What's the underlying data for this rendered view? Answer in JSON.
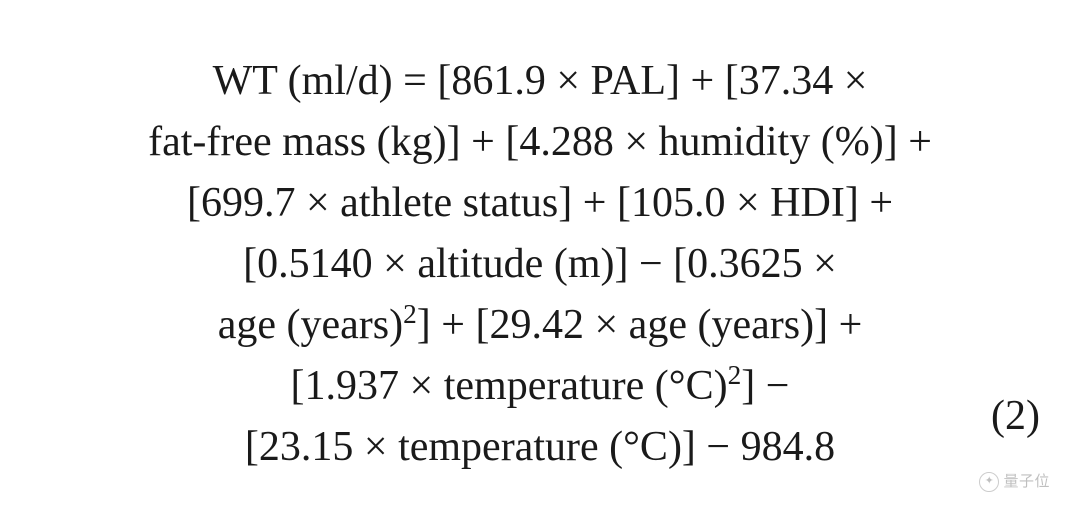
{
  "equation": {
    "label": "WT",
    "unit": "ml/d",
    "equation_number": "(2)",
    "font_family": "Century Schoolbook, Georgia, serif",
    "font_size_pt": 32,
    "text_color": "#1a1a1a",
    "background_color": "#ffffff",
    "terms": [
      {
        "op": "=",
        "coef": "861.9",
        "var": "PAL",
        "unit": null,
        "exp": null
      },
      {
        "op": "+",
        "coef": "37.34",
        "var": "fat-free mass",
        "unit": "kg",
        "exp": null
      },
      {
        "op": "+",
        "coef": "4.288",
        "var": "humidity",
        "unit": "%",
        "exp": null
      },
      {
        "op": "+",
        "coef": "699.7",
        "var": "athlete status",
        "unit": null,
        "exp": null
      },
      {
        "op": "+",
        "coef": "105.0",
        "var": "HDI",
        "unit": null,
        "exp": null
      },
      {
        "op": "+",
        "coef": "0.5140",
        "var": "altitude",
        "unit": "m",
        "exp": null
      },
      {
        "op": "−",
        "coef": "0.3625",
        "var": "age",
        "unit": "years",
        "exp": "2"
      },
      {
        "op": "+",
        "coef": "29.42",
        "var": "age",
        "unit": "years",
        "exp": null
      },
      {
        "op": "+",
        "coef": "1.937",
        "var": "temperature",
        "unit": "°C",
        "exp": "2"
      },
      {
        "op": "−",
        "coef": "23.15",
        "var": "temperature",
        "unit": "°C",
        "exp": null
      },
      {
        "op": "−",
        "coef": "984.8",
        "var": null,
        "unit": null,
        "exp": null
      }
    ],
    "lines": [
      [
        0,
        1
      ],
      [
        1,
        2
      ],
      [
        3,
        4
      ],
      [
        5,
        6
      ],
      [
        7
      ],
      [
        8
      ],
      [
        9,
        10
      ]
    ]
  },
  "watermark": {
    "text": "量子位",
    "icon_label": "wechat"
  }
}
